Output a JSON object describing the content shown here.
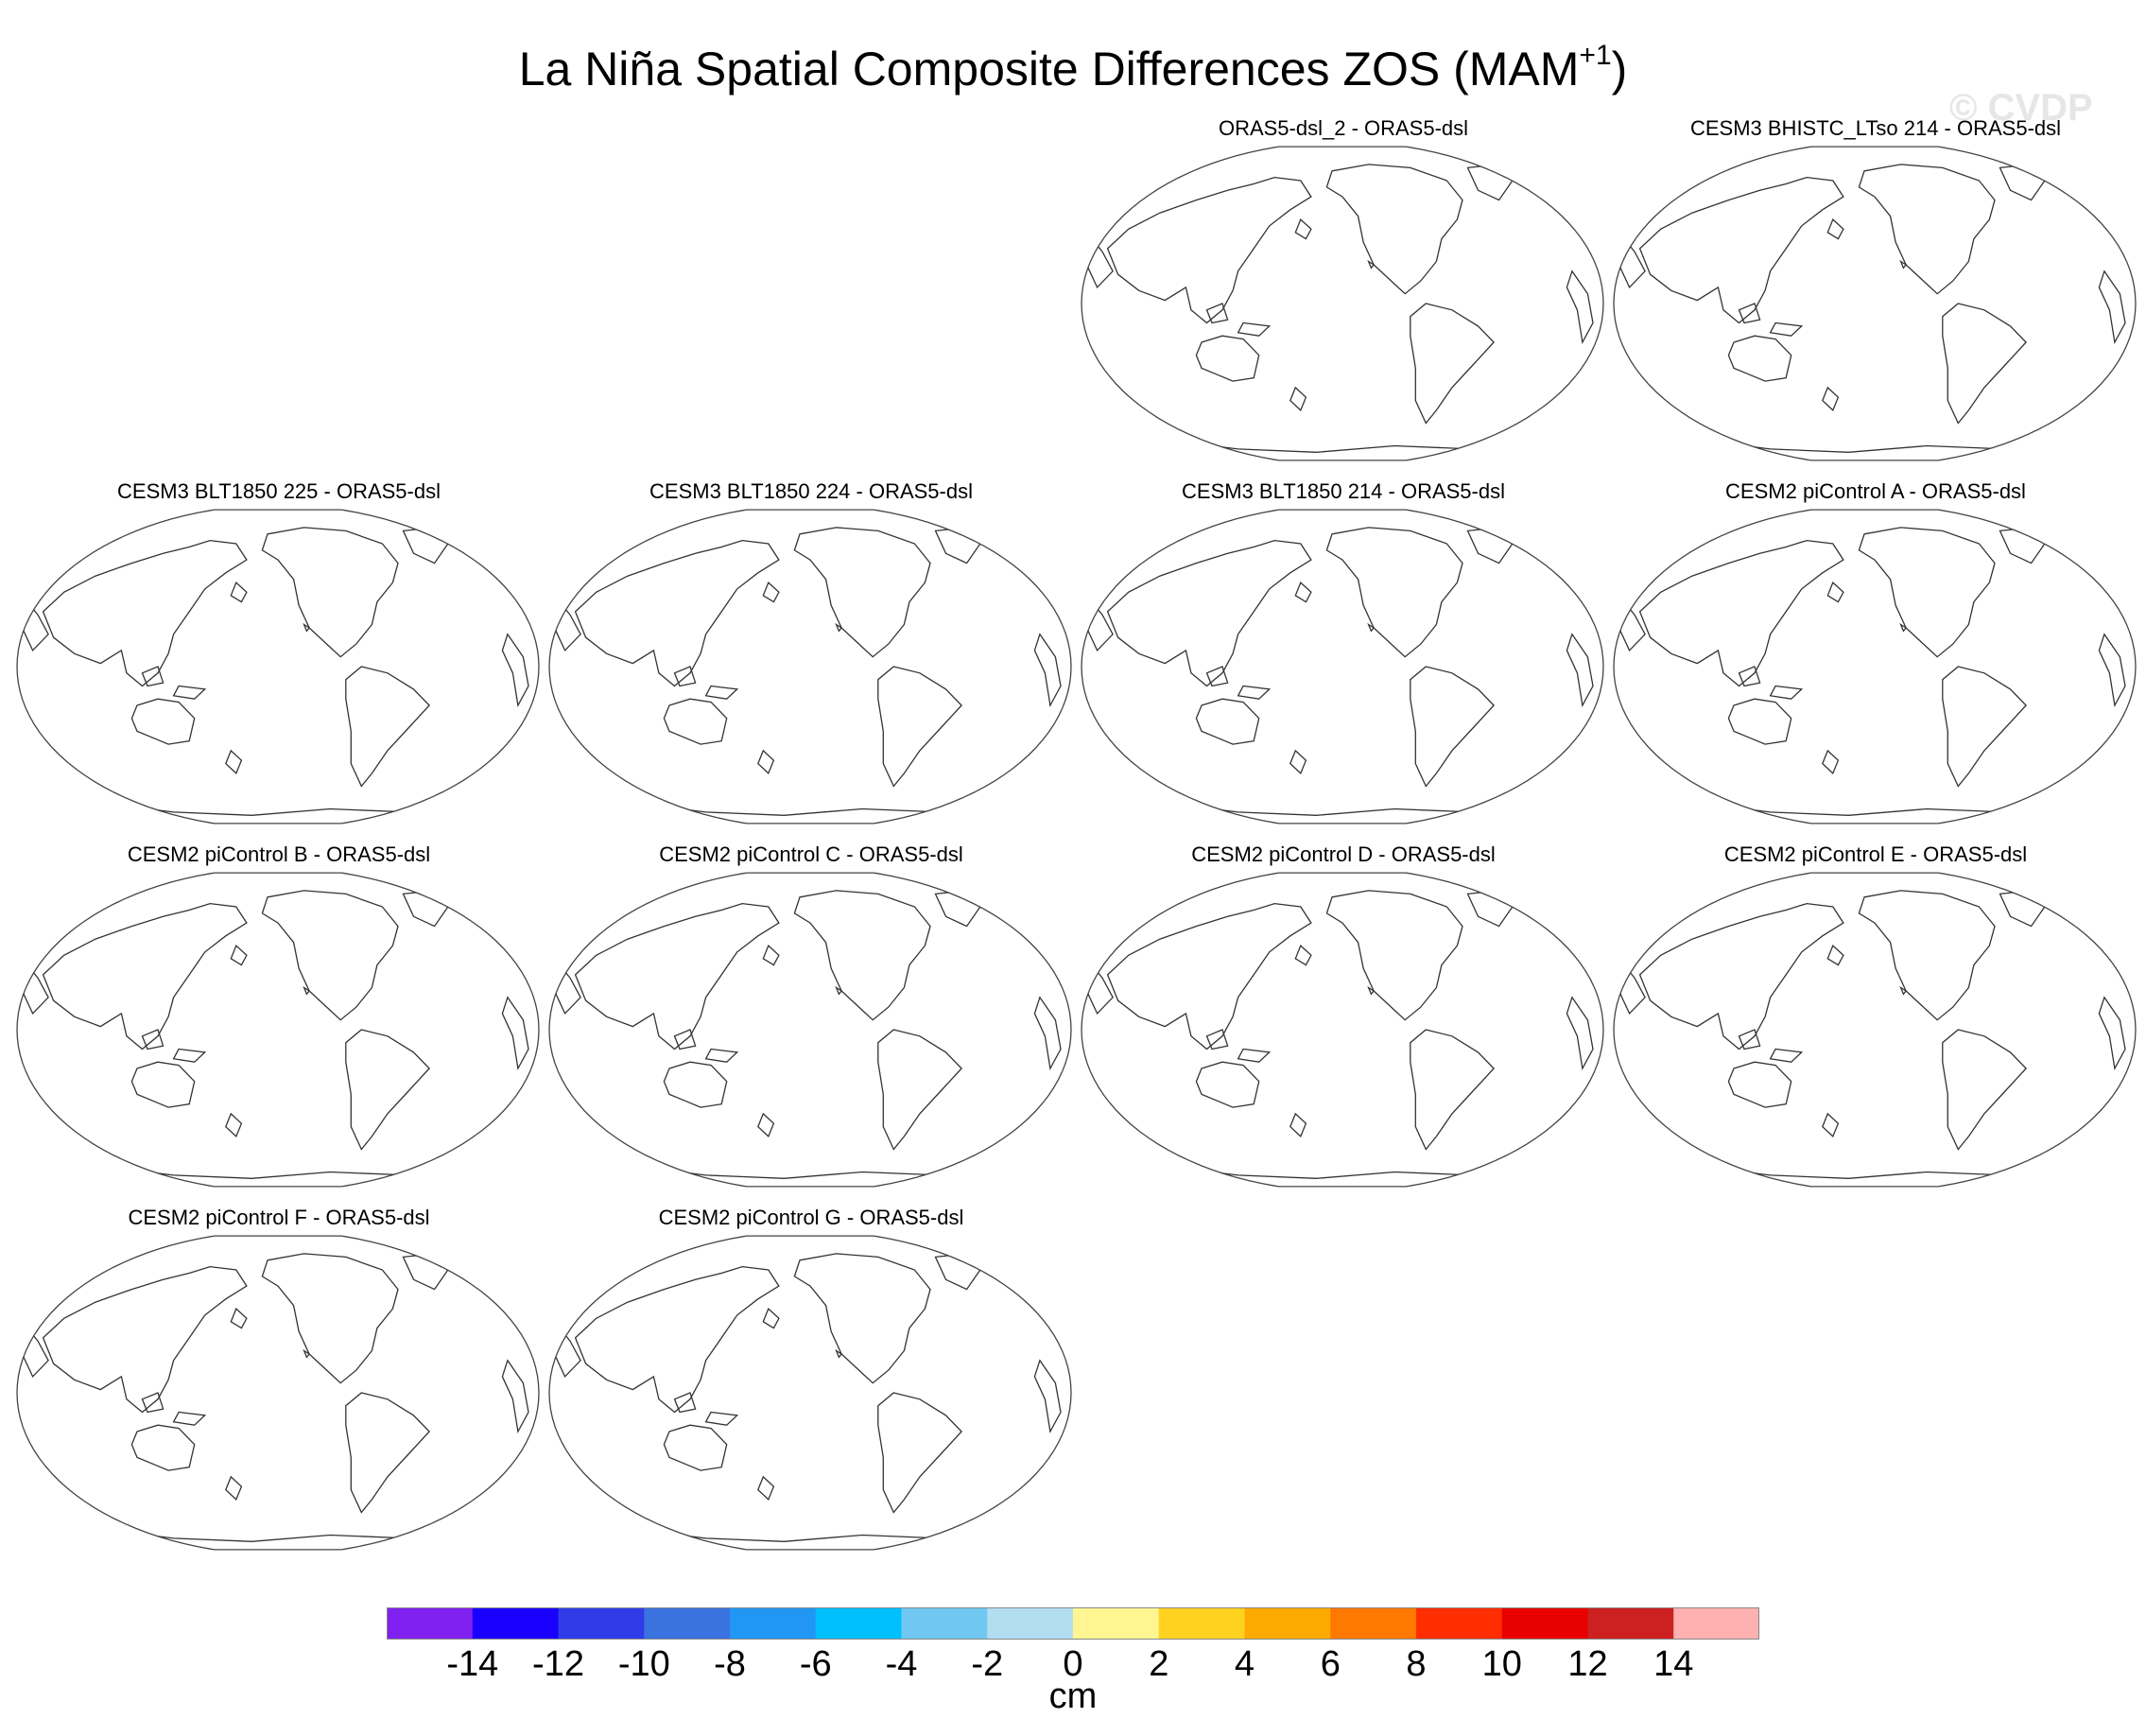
{
  "title_main": "La Niña Spatial Composite Differences ZOS (MAM",
  "title_sup": "+1",
  "title_close": ")",
  "watermark": "© CVDP",
  "chart_data": {
    "type": "map-panel-grid",
    "projection": "Robinson, Pacific-centered",
    "variable": "ZOS",
    "season": "MAM+1",
    "panels": [
      {
        "title": "ORAS5-dsl_2 - ORAS5-dsl",
        "grid_row": 1,
        "grid_col": 3
      },
      {
        "title": "CESM3 BHISTC_LTso 214 - ORAS5-dsl",
        "grid_row": 1,
        "grid_col": 4
      },
      {
        "title": "CESM3 BLT1850 225 - ORAS5-dsl",
        "grid_row": 2,
        "grid_col": 1
      },
      {
        "title": "CESM3 BLT1850 224 - ORAS5-dsl",
        "grid_row": 2,
        "grid_col": 2
      },
      {
        "title": "CESM3 BLT1850 214 - ORAS5-dsl",
        "grid_row": 2,
        "grid_col": 3
      },
      {
        "title": "CESM2 piControl A - ORAS5-dsl",
        "grid_row": 2,
        "grid_col": 4
      },
      {
        "title": "CESM2 piControl B - ORAS5-dsl",
        "grid_row": 3,
        "grid_col": 1
      },
      {
        "title": "CESM2 piControl C - ORAS5-dsl",
        "grid_row": 3,
        "grid_col": 2
      },
      {
        "title": "CESM2 piControl D - ORAS5-dsl",
        "grid_row": 3,
        "grid_col": 3
      },
      {
        "title": "CESM2 piControl E - ORAS5-dsl",
        "grid_row": 3,
        "grid_col": 4
      },
      {
        "title": "CESM2 piControl F - ORAS5-dsl",
        "grid_row": 4,
        "grid_col": 1
      },
      {
        "title": "CESM2 piControl G - ORAS5-dsl",
        "grid_row": 4,
        "grid_col": 2
      }
    ],
    "colorbar": {
      "units": "cm",
      "tick_labels": [
        "-14",
        "-12",
        "-10",
        "-8",
        "-6",
        "-4",
        "-2",
        "0",
        "2",
        "4",
        "6",
        "8",
        "10",
        "12",
        "14"
      ],
      "colors": [
        "#8121f0",
        "#1a00ff",
        "#2f3ce8",
        "#3a72e0",
        "#2196f3",
        "#00bfff",
        "#70c8f0",
        "#b3def2",
        "#fff591",
        "#ffd220",
        "#ffaa00",
        "#ff7800",
        "#ff2d00",
        "#e80000",
        "#cd2020",
        "#ffb0b0"
      ]
    }
  }
}
